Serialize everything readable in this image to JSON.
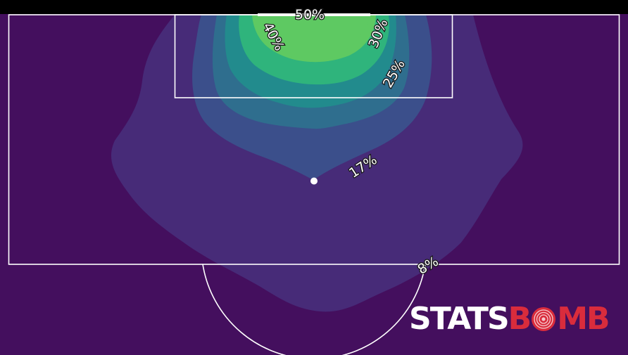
{
  "chart_data": {
    "type": "heatmap",
    "subtype": "shot-location contour density on a half pitch",
    "colormap": "viridis",
    "contour_levels": [
      {
        "level": "8%",
        "color": "#472b78"
      },
      {
        "level": "17%",
        "color": "#3b4f8b"
      },
      {
        "level": "25%",
        "color": "#2f6e8e"
      },
      {
        "level": "30%",
        "color": "#228b8d"
      },
      {
        "level": "40%",
        "color": "#2fb47c"
      },
      {
        "level": "50%",
        "color": "#5ec962"
      }
    ],
    "contour_labels": [
      "50%",
      "40%",
      "30%",
      "25%",
      "17%",
      "8%"
    ],
    "penalty_spot": true,
    "background_color": "#440f5e",
    "line_color": "#ffffff"
  },
  "logo": {
    "part1": "STATS",
    "part2a": "B",
    "part2b": "MB",
    "icon": "target-icon"
  }
}
